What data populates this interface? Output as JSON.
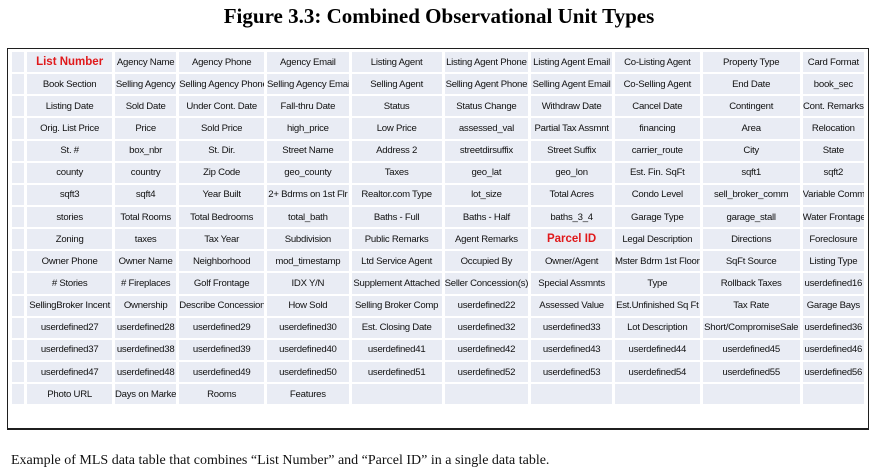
{
  "figure_title": "Figure 3.3: Combined Observational Unit Types",
  "caption": "Example of MLS data table that combines “List Number” and “Parcel ID” in a single data table.",
  "highlight_color": "#e0191b",
  "table": {
    "highlighted": [
      "List Number",
      "Parcel ID"
    ],
    "rows": [
      [
        "List Number",
        "Agency Name",
        "Agency Phone",
        "Agency Email",
        "Listing Agent",
        "Listing Agent Phone",
        "Listing Agent Email",
        "Co-Listing Agent",
        "Property Type",
        "Card Format"
      ],
      [
        "Book Section",
        "Selling Agency",
        "Selling Agency Phone",
        "Selling Agency Email",
        "Selling Agent",
        "Selling Agent Phone",
        "Selling Agent Email",
        "Co-Selling Agent",
        "End Date",
        "book_sec"
      ],
      [
        "Listing Date",
        "Sold Date",
        "Under Cont. Date",
        "Fall-thru Date",
        "Status",
        "Status Change",
        "Withdraw Date",
        "Cancel Date",
        "Contingent",
        "Cont. Remarks"
      ],
      [
        "Orig. List Price",
        "Price",
        "Sold Price",
        "high_price",
        "Low Price",
        "assessed_val",
        "Partial Tax Assmnt",
        "financing",
        "Area",
        "Relocation"
      ],
      [
        "St. #",
        "box_nbr",
        "St. Dir.",
        "Street Name",
        "Address 2",
        "streetdirsuffix",
        "Street Suffix",
        "carrier_route",
        "City",
        "State"
      ],
      [
        "county",
        "country",
        "Zip Code",
        "geo_county",
        "Taxes",
        "geo_lat",
        "geo_lon",
        "Est. Fin. SqFt",
        "sqft1",
        "sqft2"
      ],
      [
        "sqft3",
        "sqft4",
        "Year Built",
        "2+ Bdrms on 1st Flr",
        "Realtor.com Type",
        "lot_size",
        "Total Acres",
        "Condo Level",
        "sell_broker_comm",
        "Variable Commission"
      ],
      [
        "stories",
        "Total Rooms",
        "Total Bedrooms",
        "total_bath",
        "Baths - Full",
        "Baths - Half",
        "baths_3_4",
        "Garage Type",
        "garage_stall",
        "Water Frontage"
      ],
      [
        "Zoning",
        "taxes",
        "Tax Year",
        "Subdivision",
        "Public Remarks",
        "Agent Remarks",
        "Parcel ID",
        "Legal Description",
        "Directions",
        "Foreclosure"
      ],
      [
        "Owner Phone",
        "Owner Name",
        "Neighborhood",
        "mod_timestamp",
        "Ltd Service Agent",
        "Occupied By",
        "Owner/Agent",
        "Mster Bdrm 1st Floor",
        "SqFt Source",
        "Listing Type"
      ],
      [
        "# Stories",
        "# Fireplaces",
        "Golf Frontage",
        "IDX Y/N",
        "Supplement Attached",
        "Seller Concession(s)",
        "Special Assmnts",
        "Type",
        "Rollback Taxes",
        "userdefined16"
      ],
      [
        "SellingBroker Incent",
        "Ownership",
        "Describe Concession",
        "How Sold",
        "Selling Broker Comp",
        "userdefined22",
        "Assessed Value",
        "Est.Unfinished Sq Ft",
        "Tax Rate",
        "Garage Bays"
      ],
      [
        "userdefined27",
        "userdefined28",
        "userdefined29",
        "userdefined30",
        "Est. Closing Date",
        "userdefined32",
        "userdefined33",
        "Lot Description",
        "Short/CompromiseSale",
        "userdefined36"
      ],
      [
        "userdefined37",
        "userdefined38",
        "userdefined39",
        "userdefined40",
        "userdefined41",
        "userdefined42",
        "userdefined43",
        "userdefined44",
        "userdefined45",
        "userdefined46"
      ],
      [
        "userdefined47",
        "userdefined48",
        "userdefined49",
        "userdefined50",
        "userdefined51",
        "userdefined52",
        "userdefined53",
        "userdefined54",
        "userdefined55",
        "userdefined56"
      ],
      [
        "Photo URL",
        "Days on Market",
        "Rooms",
        "Features",
        "",
        "",
        "",
        "",
        "",
        ""
      ]
    ]
  }
}
